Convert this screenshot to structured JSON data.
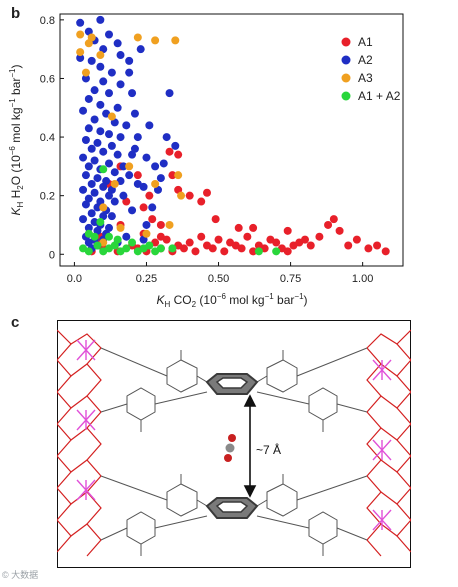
{
  "panels": {
    "b_label": "b",
    "c_label": "c"
  },
  "chart_data": {
    "type": "scatter",
    "ylabel_main": "K",
    "ylabel_sub": "H",
    "ylabel_rest": " H",
    "ylabel_h2o_sub": "2",
    "ylabel_o": "O (10",
    "ylabel_exp1": "−6",
    "ylabel_units": " mol kg",
    "ylabel_exp2": "−1",
    "ylabel_bar": " bar",
    "ylabel_exp3": "−1",
    "ylabel_close": ")",
    "xlabel_main": "K",
    "xlabel_sub": "H",
    "xlabel_co": " CO",
    "xlabel_co2_sub": "2",
    "xlabel_rest": " (10",
    "xlabel_exp1": "−6",
    "xlabel_units": " mol kg",
    "xlabel_exp2": "−1",
    "xlabel_bar": " bar",
    "xlabel_exp3": "−1",
    "xlabel_close": ")",
    "xlim": [
      -0.05,
      1.14
    ],
    "ylim": [
      -0.04,
      0.82
    ],
    "xticks": [
      "0.0",
      "0.25",
      "0.50",
      "0.75",
      "1.00"
    ],
    "xtick_values": [
      0.0,
      0.25,
      0.5,
      0.75,
      1.0
    ],
    "yticks": [
      "0",
      "0.2",
      "0.4",
      "0.6",
      "0.8"
    ],
    "ytick_values": [
      0.0,
      0.2,
      0.4,
      0.6,
      0.8
    ],
    "legend_position": "top-right",
    "series": [
      {
        "name": "A1",
        "color": "#e8202a",
        "points": [
          [
            0.06,
            0.01
          ],
          [
            0.1,
            0.02
          ],
          [
            0.15,
            0.01
          ],
          [
            0.2,
            0.03
          ],
          [
            0.22,
            0.02
          ],
          [
            0.25,
            0.01
          ],
          [
            0.28,
            0.04
          ],
          [
            0.3,
            0.02
          ],
          [
            0.32,
            0.05
          ],
          [
            0.34,
            0.01
          ],
          [
            0.36,
            0.03
          ],
          [
            0.38,
            0.02
          ],
          [
            0.4,
            0.04
          ],
          [
            0.42,
            0.01
          ],
          [
            0.44,
            0.06
          ],
          [
            0.46,
            0.03
          ],
          [
            0.48,
            0.02
          ],
          [
            0.5,
            0.05
          ],
          [
            0.52,
            0.01
          ],
          [
            0.54,
            0.04
          ],
          [
            0.56,
            0.03
          ],
          [
            0.58,
            0.02
          ],
          [
            0.6,
            0.06
          ],
          [
            0.62,
            0.01
          ],
          [
            0.64,
            0.03
          ],
          [
            0.66,
            0.02
          ],
          [
            0.68,
            0.05
          ],
          [
            0.7,
            0.04
          ],
          [
            0.72,
            0.02
          ],
          [
            0.74,
            0.01
          ],
          [
            0.76,
            0.03
          ],
          [
            0.78,
            0.04
          ],
          [
            0.8,
            0.05
          ],
          [
            0.82,
            0.03
          ],
          [
            0.85,
            0.06
          ],
          [
            0.88,
            0.1
          ],
          [
            0.9,
            0.12
          ],
          [
            0.92,
            0.08
          ],
          [
            0.95,
            0.03
          ],
          [
            0.98,
            0.05
          ],
          [
            1.02,
            0.02
          ],
          [
            1.05,
            0.03
          ],
          [
            1.08,
            0.01
          ],
          [
            0.74,
            0.08
          ],
          [
            0.57,
            0.09
          ],
          [
            0.62,
            0.09
          ],
          [
            0.12,
            0.24
          ],
          [
            0.16,
            0.3
          ],
          [
            0.22,
            0.27
          ],
          [
            0.24,
            0.16
          ],
          [
            0.26,
            0.2
          ],
          [
            0.3,
            0.1
          ],
          [
            0.33,
            0.35
          ],
          [
            0.36,
            0.34
          ],
          [
            0.36,
            0.22
          ],
          [
            0.4,
            0.2
          ],
          [
            0.44,
            0.18
          ],
          [
            0.46,
            0.21
          ],
          [
            0.49,
            0.12
          ],
          [
            0.34,
            0.27
          ],
          [
            0.24,
            0.07
          ],
          [
            0.16,
            0.1
          ],
          [
            0.3,
            0.06
          ],
          [
            0.27,
            0.12
          ],
          [
            0.09,
            0.06
          ],
          [
            0.18,
            0.18
          ],
          [
            0.05,
            0.07
          ],
          [
            0.08,
            0.04
          ]
        ]
      },
      {
        "name": "A2",
        "color": "#1f2ec4",
        "points": [
          [
            0.09,
            0.8
          ],
          [
            0.02,
            0.79
          ],
          [
            0.05,
            0.76
          ],
          [
            0.12,
            0.75
          ],
          [
            0.07,
            0.73
          ],
          [
            0.15,
            0.72
          ],
          [
            0.1,
            0.7
          ],
          [
            0.02,
            0.67
          ],
          [
            0.06,
            0.66
          ],
          [
            0.19,
            0.66
          ],
          [
            0.09,
            0.64
          ],
          [
            0.13,
            0.62
          ],
          [
            0.04,
            0.6
          ],
          [
            0.1,
            0.59
          ],
          [
            0.16,
            0.58
          ],
          [
            0.07,
            0.56
          ],
          [
            0.12,
            0.55
          ],
          [
            0.2,
            0.55
          ],
          [
            0.05,
            0.53
          ],
          [
            0.09,
            0.51
          ],
          [
            0.15,
            0.5
          ],
          [
            0.03,
            0.49
          ],
          [
            0.11,
            0.48
          ],
          [
            0.07,
            0.46
          ],
          [
            0.14,
            0.45
          ],
          [
            0.18,
            0.44
          ],
          [
            0.05,
            0.43
          ],
          [
            0.09,
            0.42
          ],
          [
            0.12,
            0.41
          ],
          [
            0.16,
            0.4
          ],
          [
            0.22,
            0.4
          ],
          [
            0.04,
            0.39
          ],
          [
            0.08,
            0.38
          ],
          [
            0.13,
            0.37
          ],
          [
            0.06,
            0.36
          ],
          [
            0.1,
            0.35
          ],
          [
            0.15,
            0.34
          ],
          [
            0.2,
            0.34
          ],
          [
            0.25,
            0.33
          ],
          [
            0.03,
            0.33
          ],
          [
            0.07,
            0.32
          ],
          [
            0.12,
            0.31
          ],
          [
            0.17,
            0.3
          ],
          [
            0.05,
            0.3
          ],
          [
            0.09,
            0.29
          ],
          [
            0.14,
            0.28
          ],
          [
            0.19,
            0.27
          ],
          [
            0.04,
            0.27
          ],
          [
            0.08,
            0.26
          ],
          [
            0.11,
            0.25
          ],
          [
            0.16,
            0.25
          ],
          [
            0.22,
            0.24
          ],
          [
            0.06,
            0.24
          ],
          [
            0.1,
            0.23
          ],
          [
            0.13,
            0.22
          ],
          [
            0.03,
            0.22
          ],
          [
            0.07,
            0.21
          ],
          [
            0.12,
            0.2
          ],
          [
            0.17,
            0.2
          ],
          [
            0.05,
            0.19
          ],
          [
            0.09,
            0.18
          ],
          [
            0.14,
            0.18
          ],
          [
            0.04,
            0.17
          ],
          [
            0.08,
            0.16
          ],
          [
            0.11,
            0.15
          ],
          [
            0.06,
            0.14
          ],
          [
            0.1,
            0.13
          ],
          [
            0.13,
            0.13
          ],
          [
            0.03,
            0.12
          ],
          [
            0.07,
            0.11
          ],
          [
            0.09,
            0.1
          ],
          [
            0.05,
            0.09
          ],
          [
            0.08,
            0.08
          ],
          [
            0.11,
            0.07
          ],
          [
            0.04,
            0.06
          ],
          [
            0.07,
            0.05
          ],
          [
            0.1,
            0.05
          ],
          [
            0.05,
            0.04
          ],
          [
            0.08,
            0.03
          ],
          [
            0.06,
            0.02
          ],
          [
            0.28,
            0.3
          ],
          [
            0.3,
            0.26
          ],
          [
            0.24,
            0.23
          ],
          [
            0.32,
            0.4
          ],
          [
            0.21,
            0.48
          ],
          [
            0.33,
            0.55
          ],
          [
            0.19,
            0.62
          ],
          [
            0.16,
            0.68
          ],
          [
            0.23,
            0.7
          ],
          [
            0.29,
            0.22
          ],
          [
            0.27,
            0.16
          ],
          [
            0.21,
            0.36
          ],
          [
            0.26,
            0.44
          ],
          [
            0.35,
            0.37
          ],
          [
            0.31,
            0.31
          ],
          [
            0.18,
            0.06
          ],
          [
            0.15,
            0.04
          ],
          [
            0.24,
            0.05
          ],
          [
            0.2,
            0.15
          ],
          [
            0.25,
            0.1
          ],
          [
            0.12,
            0.09
          ]
        ]
      },
      {
        "name": "A3",
        "color": "#f0a020",
        "points": [
          [
            0.02,
            0.75
          ],
          [
            0.06,
            0.74
          ],
          [
            0.05,
            0.72
          ],
          [
            0.22,
            0.74
          ],
          [
            0.28,
            0.73
          ],
          [
            0.35,
            0.73
          ],
          [
            0.02,
            0.69
          ],
          [
            0.09,
            0.68
          ],
          [
            0.04,
            0.62
          ],
          [
            0.13,
            0.47
          ],
          [
            0.19,
            0.3
          ],
          [
            0.14,
            0.24
          ],
          [
            0.28,
            0.24
          ],
          [
            0.36,
            0.27
          ],
          [
            0.37,
            0.2
          ],
          [
            0.33,
            0.1
          ],
          [
            0.1,
            0.16
          ],
          [
            0.16,
            0.09
          ],
          [
            0.25,
            0.07
          ],
          [
            0.1,
            0.04
          ]
        ]
      },
      {
        "name": "A1 + A2",
        "color": "#29d63b",
        "points": [
          [
            0.03,
            0.02
          ],
          [
            0.05,
            0.01
          ],
          [
            0.08,
            0.03
          ],
          [
            0.1,
            0.01
          ],
          [
            0.12,
            0.02
          ],
          [
            0.14,
            0.03
          ],
          [
            0.16,
            0.01
          ],
          [
            0.18,
            0.02
          ],
          [
            0.2,
            0.04
          ],
          [
            0.22,
            0.01
          ],
          [
            0.24,
            0.02
          ],
          [
            0.26,
            0.03
          ],
          [
            0.28,
            0.01
          ],
          [
            0.3,
            0.02
          ],
          [
            0.09,
            0.11
          ],
          [
            0.05,
            0.07
          ],
          [
            0.12,
            0.06
          ],
          [
            0.34,
            0.02
          ],
          [
            0.7,
            0.01
          ],
          [
            0.64,
            0.01
          ],
          [
            0.1,
            0.29
          ],
          [
            0.07,
            0.06
          ],
          [
            0.15,
            0.05
          ]
        ]
      }
    ]
  },
  "scene_c": {
    "distance_label": "~7 Å"
  },
  "watermark": "© 大数据"
}
